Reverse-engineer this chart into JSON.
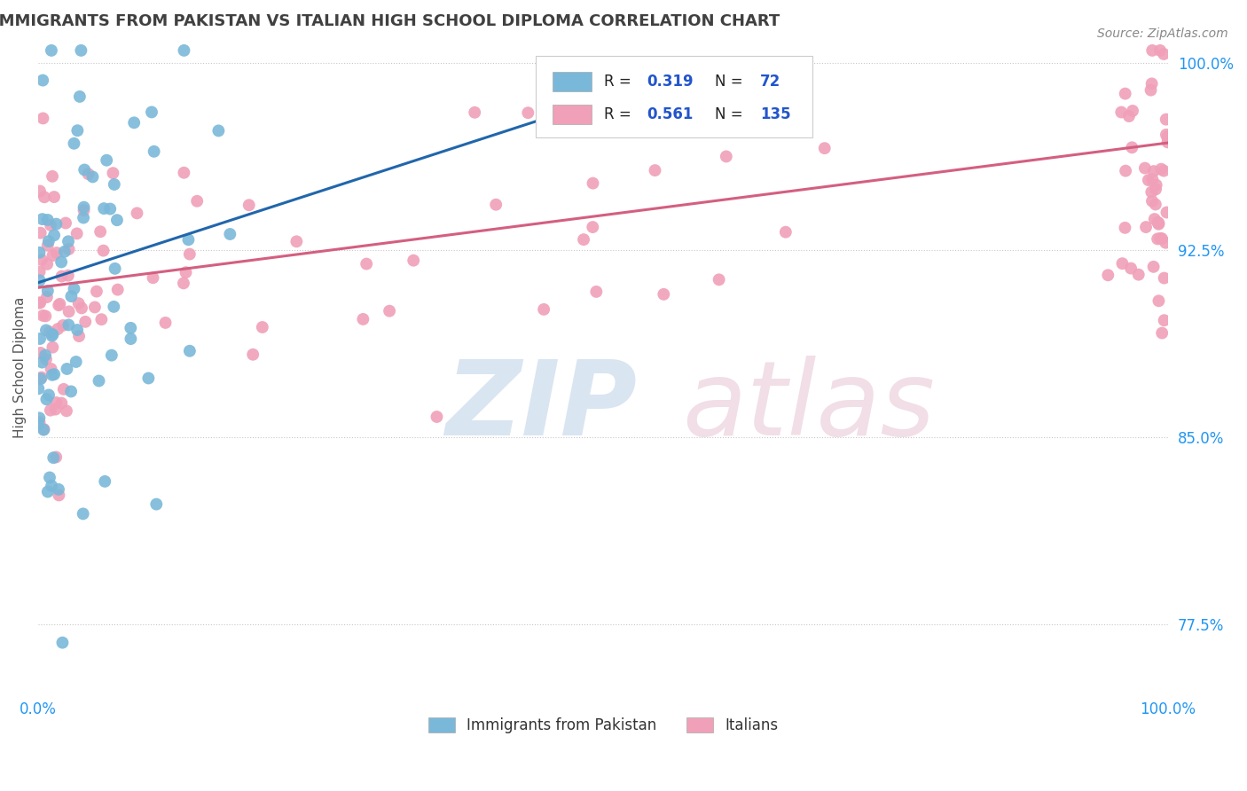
{
  "title": "IMMIGRANTS FROM PAKISTAN VS ITALIAN HIGH SCHOOL DIPLOMA CORRELATION CHART",
  "source": "Source: ZipAtlas.com",
  "ylabel": "High School Diploma",
  "legend_labels": [
    "Immigrants from Pakistan",
    "Italians"
  ],
  "blue_color": "#7ab8d9",
  "pink_color": "#f0a0b8",
  "blue_line_color": "#2166ac",
  "pink_line_color": "#d45f80",
  "xlim": [
    0.0,
    1.0
  ],
  "ylim": [
    0.748,
    1.008
  ],
  "ytick_vals": [
    0.775,
    0.85,
    0.925,
    1.0
  ],
  "ytick_labels": [
    "77.5%",
    "85.0%",
    "92.5%",
    "100.0%"
  ],
  "background_color": "#ffffff",
  "title_color": "#404040",
  "source_color": "#888888",
  "blue_R": 0.319,
  "blue_N": 72,
  "pink_R": 0.561,
  "pink_N": 135
}
